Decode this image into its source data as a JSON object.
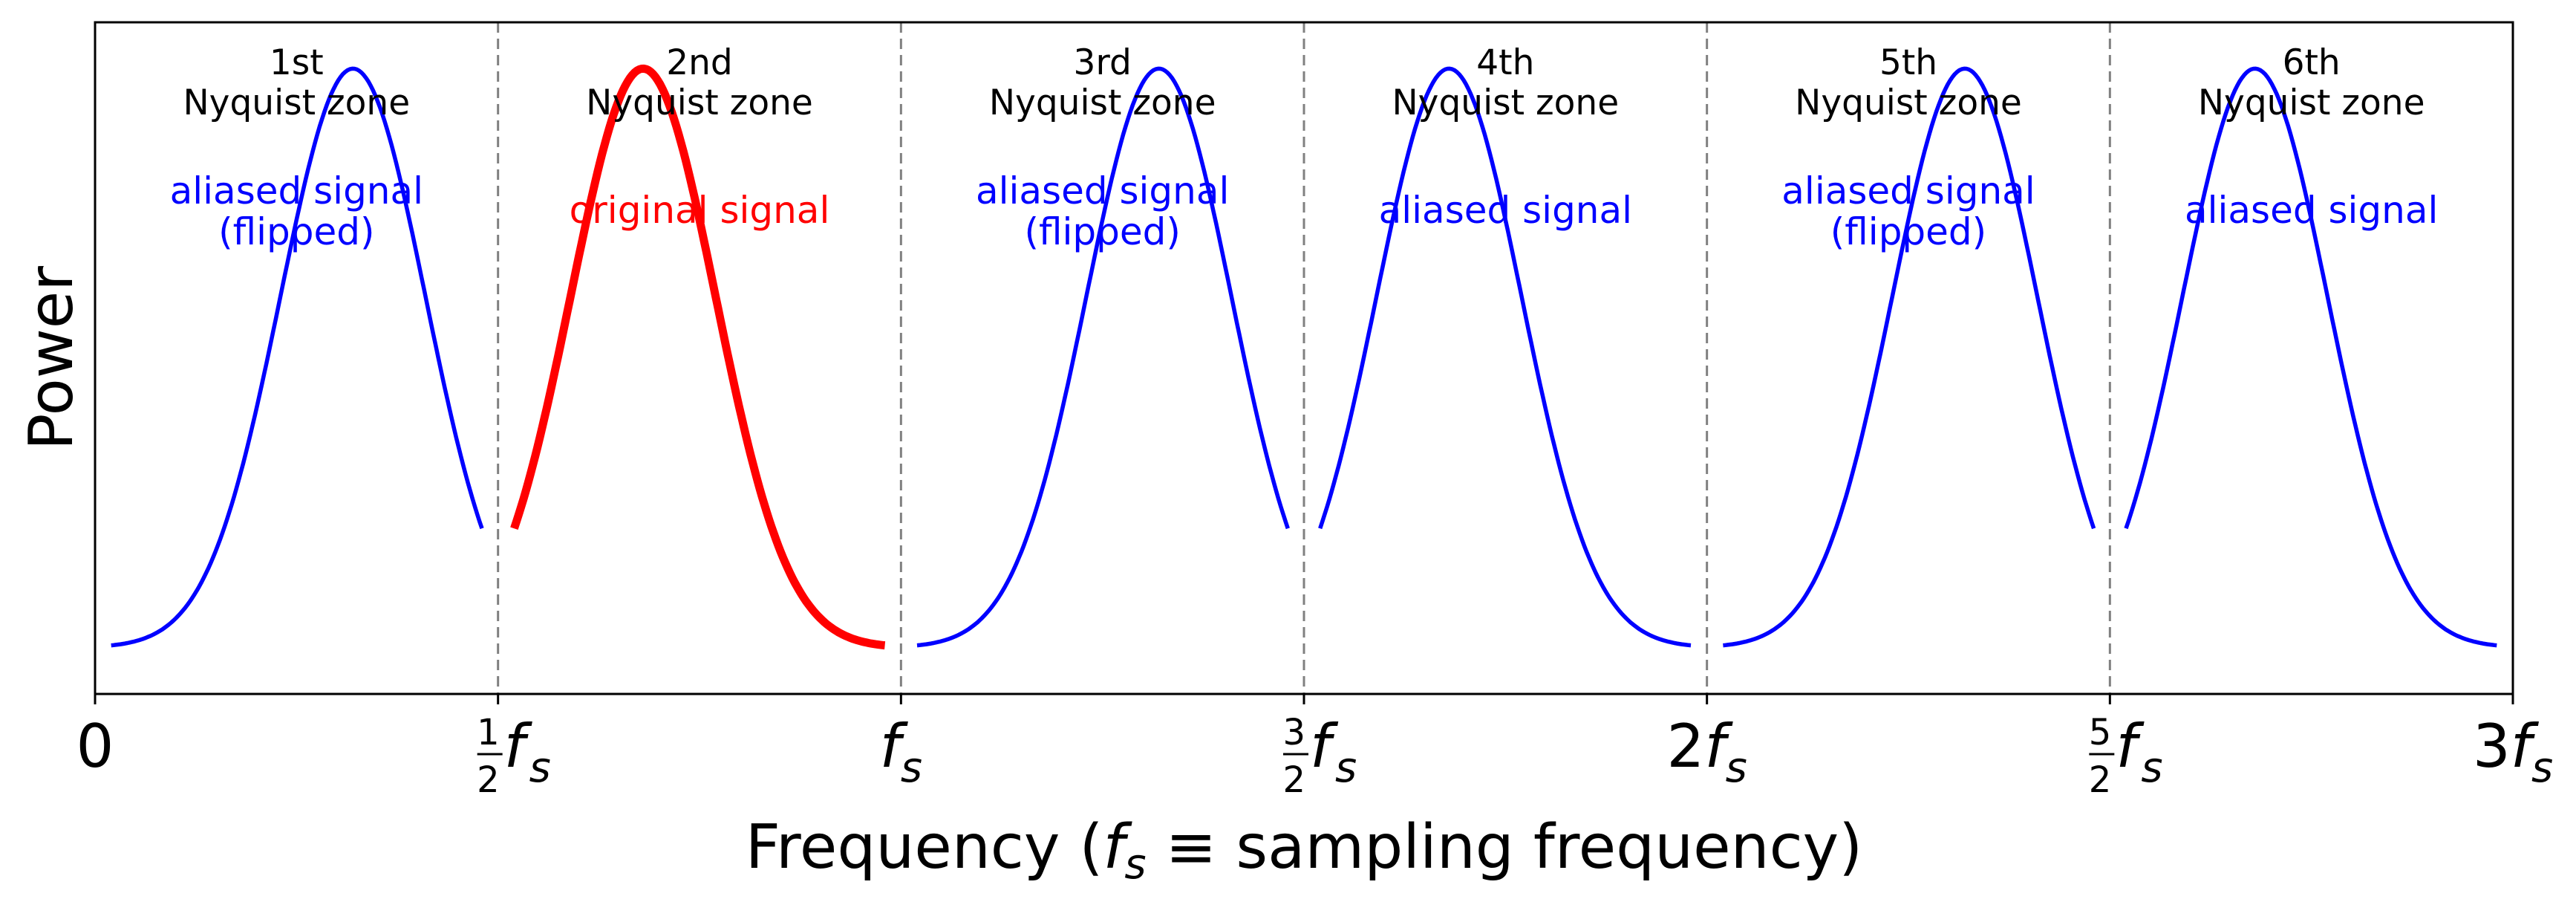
{
  "chart_data": {
    "type": "line",
    "xlabel": "Frequency (f_s ≡ sampling frequency)",
    "xlabel_parts": {
      "open": "Frequency (",
      "symbol": "f",
      "subscript": "s",
      "rest": " ≡  sampling frequency)"
    },
    "ylabel": "Power",
    "xlim": [
      0,
      3
    ],
    "x_unit": "f_s",
    "grid": false,
    "y_ticks_shown": false,
    "zone_boundaries": [
      0.5,
      1.0,
      1.5,
      2.0,
      2.5
    ],
    "x_ticks": [
      {
        "value": 0.0,
        "label": "0"
      },
      {
        "value": 0.5,
        "label": "1/2 f_s",
        "numerator": "1",
        "denominator": "2",
        "symbol": "f",
        "subscript": "s"
      },
      {
        "value": 1.0,
        "label": "f_s",
        "symbol": "f",
        "subscript": "s"
      },
      {
        "value": 1.5,
        "label": "3/2 f_s",
        "numerator": "3",
        "denominator": "2",
        "symbol": "f",
        "subscript": "s"
      },
      {
        "value": 2.0,
        "label": "2f_s",
        "coefficient": "2",
        "symbol": "f",
        "subscript": "s"
      },
      {
        "value": 2.5,
        "label": "5/2 f_s",
        "numerator": "5",
        "denominator": "2",
        "symbol": "f",
        "subscript": "s"
      },
      {
        "value": 3.0,
        "label": "3f_s",
        "coefficient": "3",
        "symbol": "f",
        "subscript": "s"
      }
    ],
    "signal_shape": {
      "description_values": "Gaussian peak repeated in every zone; flipped in odd zones",
      "original_peak_x": 0.68,
      "sigma": 0.09,
      "segment_start_x": 0.52,
      "segment_end_x": 0.98,
      "peak_power": 1.0,
      "ylim": [
        -0.08,
        1.08
      ]
    },
    "zones": [
      {
        "title_line1": "1st",
        "title_line2": "Nyquist zone",
        "label_lines": [
          "aliased signal",
          "(flipped)"
        ],
        "color": "#0000ff",
        "flipped": true,
        "original": false
      },
      {
        "title_line1": "2nd",
        "title_line2": "Nyquist zone",
        "label_lines": [
          "original signal"
        ],
        "color": "#ff0000",
        "flipped": false,
        "original": true
      },
      {
        "title_line1": "3rd",
        "title_line2": "Nyquist zone",
        "label_lines": [
          "aliased signal",
          "(flipped)"
        ],
        "color": "#0000ff",
        "flipped": true,
        "original": false
      },
      {
        "title_line1": "4th",
        "title_line2": "Nyquist zone",
        "label_lines": [
          "aliased signal"
        ],
        "color": "#0000ff",
        "flipped": false,
        "original": false
      },
      {
        "title_line1": "5th",
        "title_line2": "Nyquist zone",
        "label_lines": [
          "aliased signal",
          "(flipped)"
        ],
        "color": "#0000ff",
        "flipped": true,
        "original": false
      },
      {
        "title_line1": "6th",
        "title_line2": "Nyquist zone",
        "label_lines": [
          "aliased signal"
        ],
        "color": "#0000ff",
        "flipped": false,
        "original": false
      }
    ],
    "colors": {
      "aliased": "#0000ff",
      "original": "#ff0000",
      "boundary": "#808080",
      "axes": "#000000"
    }
  }
}
